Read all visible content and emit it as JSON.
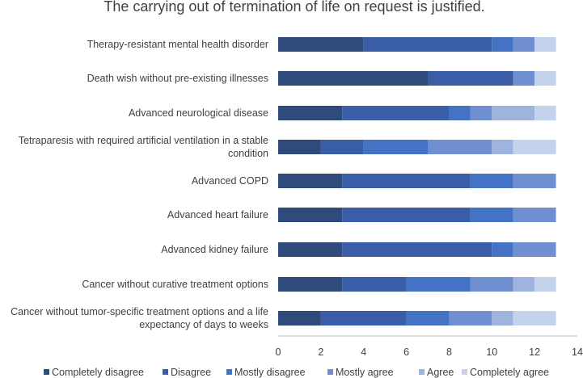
{
  "chart_data": {
    "type": "bar",
    "orientation": "horizontal",
    "stacked": true,
    "title": "The carrying out of termination of life on request is justified.",
    "xlabel": "",
    "ylabel": "",
    "xlim": [
      0,
      14
    ],
    "xticks": [
      0,
      2,
      4,
      6,
      8,
      10,
      12,
      14
    ],
    "grid": false,
    "legend_position": "bottom",
    "categories": [
      "Therapy-resistant mental health disorder",
      "Death wish without pre-existing illnesses",
      "Advanced neurological disease",
      "Tetraparesis with required artificial ventilation in a stable condition",
      "Advanced COPD",
      "Advanced heart failure",
      "Advanced kidney failure",
      "Cancer without curative treatment options",
      "Cancer without tumor-specific treatment options and a life expectancy of days to weeks"
    ],
    "category_lines": [
      [
        "Therapy-resistant mental health disorder"
      ],
      [
        "Death wish without pre-existing illnesses"
      ],
      [
        "Advanced neurological disease"
      ],
      [
        "Tetraparesis with required artificial ventilation in a stable",
        "condition"
      ],
      [
        "Advanced COPD"
      ],
      [
        "Advanced heart failure"
      ],
      [
        "Advanced kidney failure"
      ],
      [
        "Cancer without curative treatment options"
      ],
      [
        "Cancer without tumor-specific treatment options and a life",
        "expectancy of days to weeks"
      ]
    ],
    "series": [
      {
        "name": "Completely disagree",
        "color": "#2F4B7C",
        "values": [
          4,
          7,
          3,
          2,
          3,
          3,
          3,
          3,
          2
        ]
      },
      {
        "name": "Disagree",
        "color": "#3A5DA8",
        "values": [
          6,
          4,
          5,
          2,
          6,
          6,
          7,
          3,
          4
        ]
      },
      {
        "name": "Mostly disagree",
        "color": "#4472C4",
        "values": [
          1,
          0,
          1,
          3,
          2,
          2,
          1,
          3,
          2
        ]
      },
      {
        "name": "Mostly agree",
        "color": "#6F8FD0",
        "values": [
          1,
          1,
          1,
          3,
          2,
          2,
          2,
          2,
          2
        ]
      },
      {
        "name": "Agree",
        "color": "#9EB3DE",
        "values": [
          0,
          0,
          2,
          1,
          0,
          0,
          0,
          1,
          1
        ]
      },
      {
        "name": "Completely agree",
        "color": "#C5D2EC",
        "values": [
          1,
          1,
          1,
          2,
          0,
          0,
          0,
          1,
          2
        ]
      }
    ]
  }
}
